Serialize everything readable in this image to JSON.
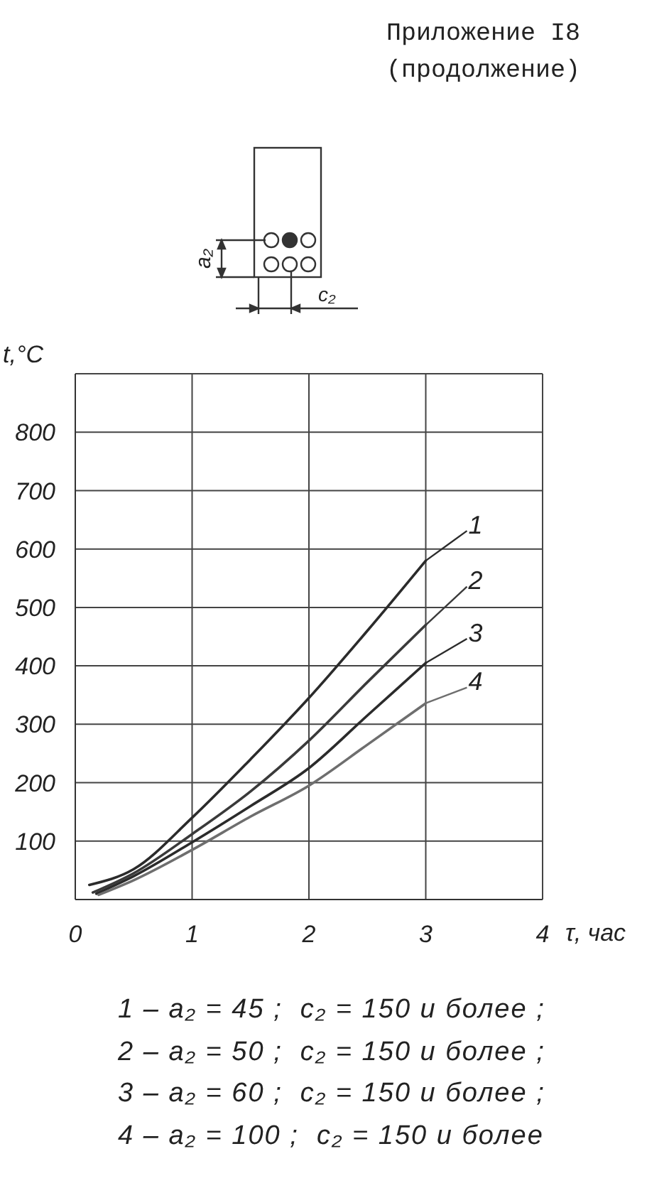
{
  "chart_data": {
    "type": "line",
    "title": "Приложение I8",
    "subtitle": "(продолжение)",
    "xlabel": "τ, час",
    "ylabel": "t,°C",
    "annotations": [
      "a₂",
      "c₂",
      "1 – a₂ = 45 ;  c₂ = 150 и более ;",
      "2 – a₂ = 50 ;  c₂ = 150 и более ;",
      "3 – a₂ = 60 ;  c₂ = 150 и более ;",
      "4 – a₂ = 100 ;  c₂ = 150 и более"
    ],
    "xlim": [
      0,
      4
    ],
    "xticks": [
      0,
      1,
      2,
      3,
      4
    ],
    "ylim": [
      0,
      900
    ],
    "yticks": [
      100,
      200,
      300,
      400,
      500,
      600,
      700,
      800
    ],
    "grid": true,
    "marker": "none",
    "line_style": "solid",
    "series": [
      {
        "name": "1",
        "color": "#2b2b2b",
        "x": [
          0.12,
          0.5,
          1,
          1.5,
          2,
          2.5,
          3
        ],
        "values": [
          25,
          52,
          140,
          240,
          345,
          460,
          580
        ]
      },
      {
        "name": "2",
        "color": "#3a3a3a",
        "x": [
          0.15,
          0.5,
          1,
          1.5,
          2,
          2.5,
          3
        ],
        "values": [
          12,
          45,
          112,
          185,
          272,
          372,
          470
        ]
      },
      {
        "name": "3",
        "color": "#2b2b2b",
        "x": [
          0.18,
          0.5,
          1,
          1.5,
          2,
          2.5,
          3
        ],
        "values": [
          10,
          40,
          98,
          160,
          225,
          315,
          405
        ]
      },
      {
        "name": "4",
        "color": "#6e6e6e",
        "x": [
          0.2,
          0.5,
          1,
          1.5,
          2,
          2.5,
          3
        ],
        "values": [
          8,
          33,
          85,
          142,
          195,
          265,
          336
        ]
      }
    ]
  }
}
